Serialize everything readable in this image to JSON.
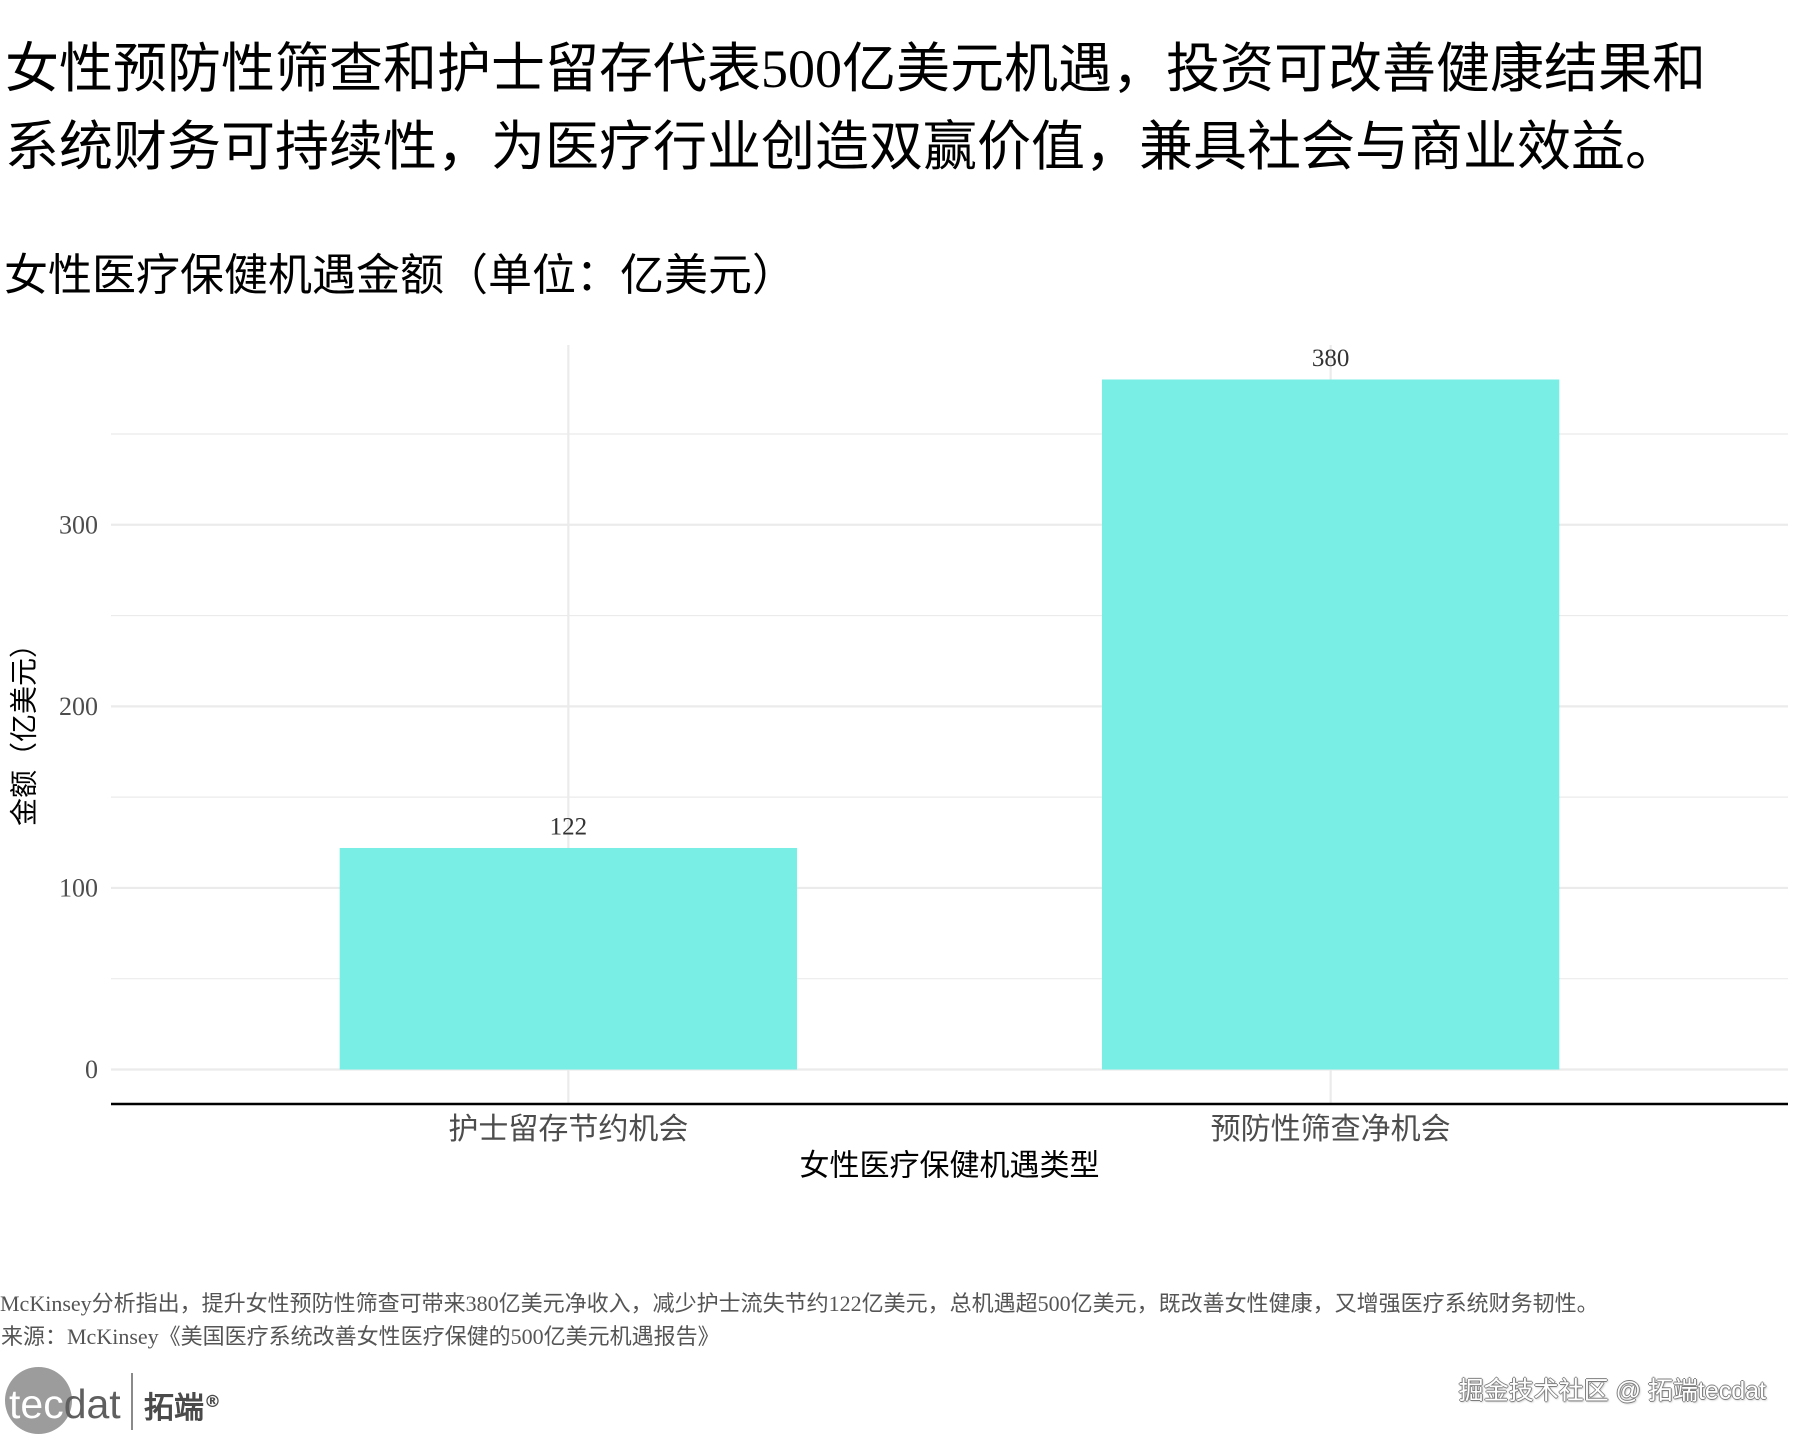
{
  "chart_data": {
    "type": "bar",
    "title_lines": [
      "女性预防性筛查和护士留存代表500亿美元机遇，投资可改善健康结果和",
      "系统财务可持续性，为医疗行业创造双赢价值，兼具社会与商业效益。"
    ],
    "subtitle": "女性医疗保健机遇金额（单位：亿美元）",
    "xlabel": "女性医疗保健机遇类型",
    "ylabel": "金额（亿美元）",
    "categories": [
      "护士留存节约机会",
      "预防性筛查净机会"
    ],
    "values": [
      122,
      380
    ],
    "ylim": [
      -19,
      399
    ],
    "y_ticks": [
      0,
      100,
      200,
      300
    ],
    "y_minor_ticks": [
      50,
      150,
      250,
      350
    ],
    "grid": true,
    "bar_color": "#78EEE4",
    "caption": "McKinsey分析指出，提升女性预防性筛查可带来380亿美元净收入，减少护士流失节约122亿美元，总机遇超500亿美元，既改善女性健康，又增强医疗系统财务韧性。",
    "source": "来源：McKinsey《美国医疗系统改善女性医疗保健的500亿美元机遇报告》"
  },
  "logo": {
    "wordmark": "tecdat",
    "name": "拓端",
    "mark": "®"
  },
  "watermark": "掘金技术社区 @ 拓端tecdat"
}
